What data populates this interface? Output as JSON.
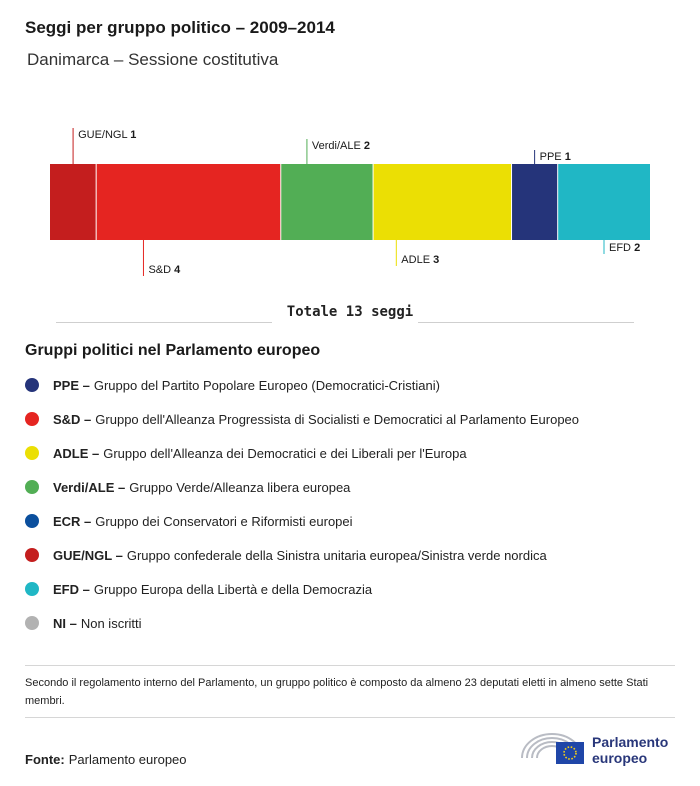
{
  "header": {
    "title": "Seggi per gruppo politico – 2009–2014",
    "subtitle": "Danimarca – Sessione costitutiva"
  },
  "chart_data": {
    "type": "bar",
    "orientation": "horizontal-stacked",
    "total_seats": 13,
    "categories": [
      "GUE/NGL",
      "S&D",
      "Verdi/ALE",
      "ADLE",
      "PPE",
      "EFD"
    ],
    "values": [
      1,
      4,
      2,
      3,
      1,
      2
    ],
    "colors": [
      "#c41e1e",
      "#e52521",
      "#52ae55",
      "#ebdf04",
      "#25347a",
      "#20b7c5"
    ],
    "label_positions": [
      "top",
      "bottom",
      "top",
      "bottom",
      "top",
      "bottom"
    ]
  },
  "total": {
    "text": "Totale 13 seggi"
  },
  "legend": {
    "title": "Gruppi politici nel Parlamento europeo",
    "items": [
      {
        "abbr": "PPE –",
        "desc": "Gruppo del Partito Popolare Europeo (Democratici-Cristiani)",
        "color": "#25347a"
      },
      {
        "abbr": "S&D –",
        "desc": "Gruppo dell'Alleanza Progressista di Socialisti e Democratici al Parlamento Europeo",
        "color": "#e52521"
      },
      {
        "abbr": "ADLE –",
        "desc": "Gruppo dell'Alleanza dei Democratici e dei Liberali per l'Europa",
        "color": "#ebdf04"
      },
      {
        "abbr": "Verdi/ALE –",
        "desc": "Gruppo Verde/Alleanza libera europea",
        "color": "#52ae55"
      },
      {
        "abbr": "ECR –",
        "desc": "Gruppo dei Conservatori e Riformisti europei",
        "color": "#0b4f9d"
      },
      {
        "abbr": "GUE/NGL –",
        "desc": "Gruppo confederale della Sinistra unitaria europea/Sinistra verde nordica",
        "color": "#c41e1e"
      },
      {
        "abbr": "EFD –",
        "desc": "Gruppo Europa della Libertà e della Democrazia",
        "color": "#20b7c5"
      },
      {
        "abbr": "NI –",
        "desc": "Non iscritti",
        "color": "#b2b2b2"
      }
    ]
  },
  "note": "Secondo il regolamento interno del Parlamento, un gruppo politico è composto da almeno 23 deputati eletti in almeno sette Stati membri.",
  "source": {
    "label": "Fonte:",
    "text": "Parlamento europeo"
  },
  "logo": {
    "line1": "Parlamento",
    "line2": "europeo",
    "icon": "european-parliament-hemicycle-logo"
  }
}
